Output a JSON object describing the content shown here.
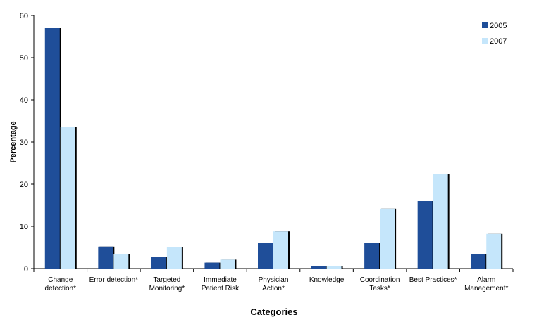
{
  "chart_data": {
    "type": "bar",
    "title": "",
    "xlabel": "Categories",
    "ylabel": "Percentage",
    "ylim": [
      0,
      60
    ],
    "yticks": [
      0,
      10,
      20,
      30,
      40,
      50,
      60
    ],
    "grid": false,
    "legend_position": "top-right",
    "categories": [
      [
        "Change",
        "detection*"
      ],
      [
        "Error detection*"
      ],
      [
        "Targeted",
        "Monitoring*"
      ],
      [
        "Immediate",
        "Patient Risk"
      ],
      [
        "Physician",
        "Action*"
      ],
      [
        "Knowledge"
      ],
      [
        "Coordination",
        "Tasks*"
      ],
      [
        "Best Practices*"
      ],
      [
        "Alarm",
        "Management*"
      ]
    ],
    "series": [
      {
        "name": "2005",
        "color": "#1f4e99",
        "values": [
          57,
          5.2,
          2.8,
          1.4,
          6.1,
          0.6,
          6.1,
          16.0,
          3.5
        ]
      },
      {
        "name": "2007",
        "color": "#c5e6fb",
        "values": [
          33.5,
          3.4,
          5.0,
          2.1,
          8.8,
          0.6,
          14.2,
          22.5,
          8.2
        ]
      }
    ],
    "shadow_color": "#000000"
  }
}
